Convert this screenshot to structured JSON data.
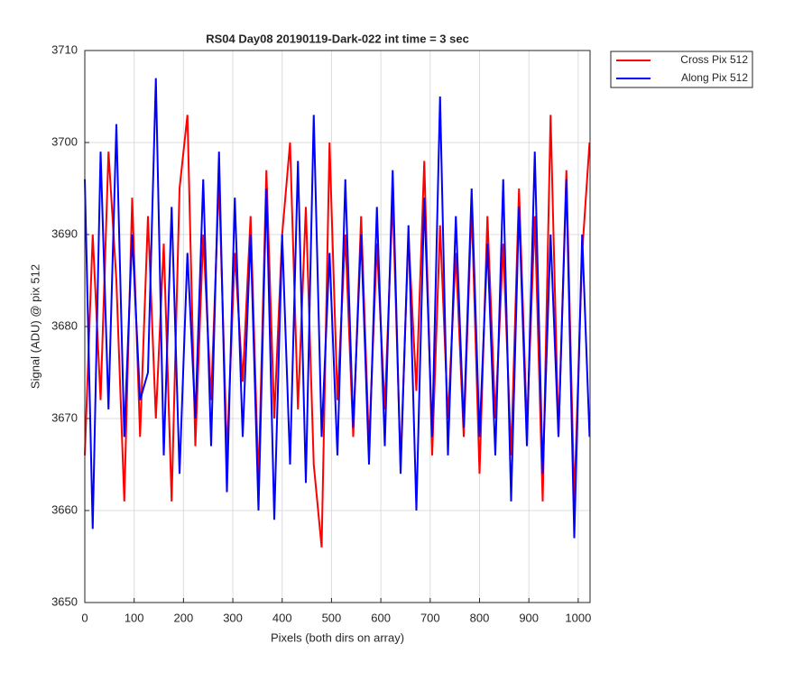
{
  "chart_data": {
    "type": "line",
    "title": "RS04 Day08 20190119-Dark-022 int time = 3 sec",
    "x_label": "Pixels (both dirs on array)",
    "y_label": "Signal (ADU) @ pix 512",
    "x": [
      0,
      16,
      32,
      48,
      64,
      80,
      96,
      112,
      128,
      144,
      160,
      176,
      192,
      208,
      224,
      240,
      256,
      272,
      288,
      304,
      320,
      336,
      352,
      368,
      384,
      400,
      416,
      432,
      448,
      464,
      480,
      496,
      512,
      528,
      544,
      560,
      576,
      592,
      608,
      624,
      640,
      656,
      672,
      688,
      704,
      720,
      736,
      752,
      768,
      784,
      800,
      816,
      832,
      848,
      864,
      880,
      896,
      912,
      928,
      944,
      960,
      976,
      992,
      1008,
      1023
    ],
    "series": [
      {
        "name": "Cross Pix 512",
        "color": "#ff0000",
        "values": [
          3666,
          3690,
          3672,
          3699,
          3685,
          3661,
          3694,
          3668,
          3692,
          3670,
          3689,
          3661,
          3695,
          3703,
          3667,
          3690,
          3672,
          3696,
          3666,
          3688,
          3674,
          3692,
          3663,
          3697,
          3670,
          3690,
          3700,
          3671,
          3693,
          3665,
          3656,
          3700,
          3672,
          3690,
          3668,
          3692,
          3667,
          3689,
          3671,
          3694,
          3665,
          3690,
          3673,
          3698,
          3666,
          3691,
          3670,
          3688,
          3668,
          3693,
          3664,
          3692,
          3670,
          3689,
          3666,
          3695,
          3669,
          3692,
          3661,
          3703,
          3668,
          3697,
          3661,
          3688,
          3700
        ]
      },
      {
        "name": "Along Pix 512",
        "color": "#0000ff",
        "values": [
          3696,
          3658,
          3699,
          3671,
          3702,
          3668,
          3690,
          3672,
          3675,
          3707,
          3666,
          3693,
          3664,
          3688,
          3670,
          3696,
          3667,
          3699,
          3662,
          3694,
          3668,
          3690,
          3660,
          3695,
          3659,
          3690,
          3665,
          3698,
          3663,
          3703,
          3668,
          3688,
          3666,
          3696,
          3669,
          3690,
          3665,
          3693,
          3667,
          3697,
          3664,
          3691,
          3660,
          3694,
          3668,
          3705,
          3666,
          3692,
          3669,
          3695,
          3668,
          3689,
          3666,
          3696,
          3661,
          3693,
          3667,
          3699,
          3664,
          3690,
          3668,
          3696,
          3657,
          3690,
          3668
        ]
      }
    ],
    "xlim": [
      0,
      1024
    ],
    "xticks": [
      0,
      100,
      200,
      300,
      400,
      500,
      600,
      700,
      800,
      900,
      1000
    ],
    "ylim": [
      3650,
      3710
    ],
    "yticks": [
      3650,
      3660,
      3670,
      3680,
      3690,
      3700,
      3710
    ],
    "grid": true,
    "legend": "outside-northeast"
  }
}
